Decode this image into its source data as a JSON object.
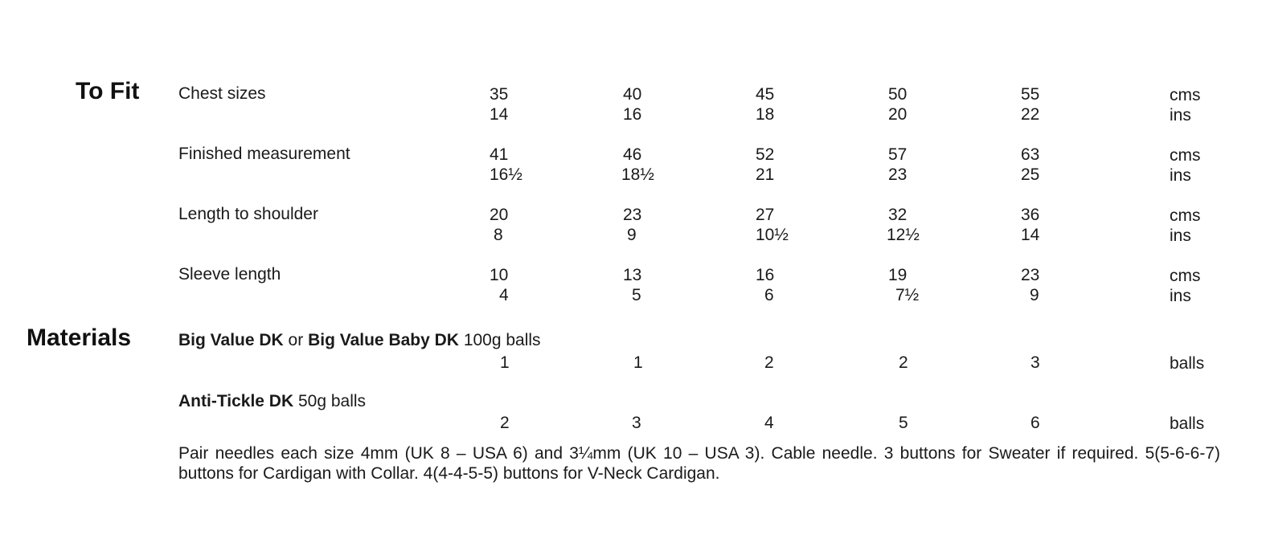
{
  "to_fit": {
    "heading": "To Fit",
    "rows": [
      {
        "label": "Chest sizes",
        "cms": [
          "35",
          "40",
          "45",
          "50",
          "55"
        ],
        "cms_unit": "cms",
        "ins": [
          "14",
          "16",
          "18",
          "20",
          "22"
        ],
        "ins_unit": "ins"
      },
      {
        "label": "Finished measurement",
        "cms": [
          "41",
          "46",
          "52",
          "57",
          "63"
        ],
        "cms_unit": "cms",
        "ins": [
          "16½",
          "18½",
          "21",
          "23",
          "25"
        ],
        "ins_unit": "ins"
      },
      {
        "label": "Length to shoulder",
        "cms": [
          "20",
          "23",
          "27",
          "32",
          "36"
        ],
        "cms_unit": "cms",
        "ins": [
          "8",
          "9",
          "10½",
          "12½",
          "14"
        ],
        "ins_unit": "ins"
      },
      {
        "label": "Sleeve length",
        "cms": [
          "10",
          "13",
          "16",
          "19",
          "23"
        ],
        "cms_unit": "cms",
        "ins": [
          "4",
          "5",
          "6",
          "7½",
          "9"
        ],
        "ins_unit": "ins"
      }
    ]
  },
  "materials": {
    "heading": "Materials",
    "yarns": [
      {
        "name_bold_1": "Big Value DK",
        "connector": "or",
        "name_bold_2": "Big Value Baby DK",
        "ball_weight": "100g balls",
        "quantities": [
          "1",
          "1",
          "2",
          "2",
          "3"
        ],
        "unit": "balls"
      },
      {
        "name_bold_1": "Anti-Tickle DK",
        "ball_weight": "50g balls",
        "quantities": [
          "2",
          "3",
          "4",
          "5",
          "6"
        ],
        "unit": "balls"
      }
    ],
    "note": "Pair needles each size 4mm (UK 8 – USA 6) and 3¼mm (UK 10 – USA 3). Cable needle. 3 buttons for Sweater if required. 5(5-6-6-7) buttons for Cardigan with Collar. 4(4-4-5-5) buttons for V-Neck Cardigan."
  }
}
